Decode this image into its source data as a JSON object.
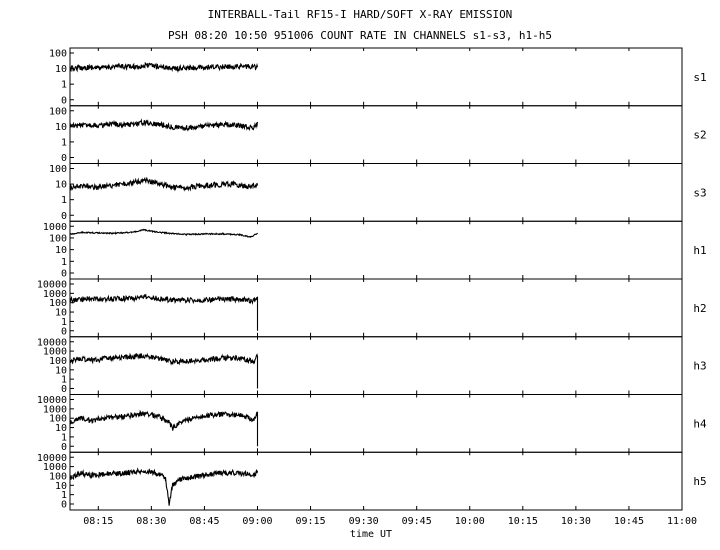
{
  "chart_data": {
    "type": "line",
    "title": "INTERBALL-Tail RF15-I HARD/SOFT X-RAY EMISSION",
    "subtitle": "PSH 08:20 10:50 951006  COUNT RATE IN CHANNELS s1-s3, h1-h5",
    "xlabel": "time UT",
    "x_ticks": [
      "08:15",
      "08:30",
      "08:45",
      "09:00",
      "09:15",
      "09:30",
      "09:45",
      "10:00",
      "10:15",
      "10:30",
      "10:45",
      "11:00"
    ],
    "x_range": [
      "08:07",
      "11:00"
    ],
    "panels": [
      {
        "name": "s1",
        "y_ticks": [
          "100",
          "10",
          "1",
          "0"
        ],
        "points": [
          [
            "08:07",
            10
          ],
          [
            "08:12",
            12
          ],
          [
            "08:16",
            11
          ],
          [
            "08:20",
            14
          ],
          [
            "08:25",
            13
          ],
          [
            "08:29",
            16
          ],
          [
            "08:33",
            13
          ],
          [
            "08:37",
            10
          ],
          [
            "08:41",
            11
          ],
          [
            "08:45",
            11
          ],
          [
            "08:50",
            13
          ],
          [
            "08:55",
            14
          ],
          [
            "09:00",
            13
          ]
        ]
      },
      {
        "name": "s2",
        "y_ticks": [
          "100",
          "10",
          "1",
          "0"
        ],
        "points": [
          [
            "08:07",
            10
          ],
          [
            "08:12",
            13
          ],
          [
            "08:16",
            11
          ],
          [
            "08:20",
            14
          ],
          [
            "08:24",
            13
          ],
          [
            "08:28",
            18
          ],
          [
            "08:32",
            14
          ],
          [
            "08:36",
            9
          ],
          [
            "08:40",
            8
          ],
          [
            "08:45",
            10
          ],
          [
            "08:50",
            13
          ],
          [
            "08:55",
            11
          ],
          [
            "08:59",
            8
          ],
          [
            "09:00",
            16
          ]
        ]
      },
      {
        "name": "s3",
        "y_ticks": [
          "100",
          "10",
          "1",
          "0"
        ],
        "points": [
          [
            "08:07",
            6
          ],
          [
            "08:11",
            8
          ],
          [
            "08:15",
            6
          ],
          [
            "08:20",
            9
          ],
          [
            "08:24",
            11
          ],
          [
            "08:28",
            18
          ],
          [
            "08:32",
            11
          ],
          [
            "08:36",
            6
          ],
          [
            "08:40",
            6
          ],
          [
            "08:44",
            8
          ],
          [
            "08:48",
            9
          ],
          [
            "08:53",
            10
          ],
          [
            "08:57",
            7
          ],
          [
            "09:00",
            9
          ]
        ]
      },
      {
        "name": "h1",
        "y_ticks": [
          "1000",
          "100",
          "10",
          "1",
          "0"
        ],
        "points": [
          [
            "08:07",
            200
          ],
          [
            "08:10",
            300
          ],
          [
            "08:15",
            270
          ],
          [
            "08:20",
            250
          ],
          [
            "08:25",
            320
          ],
          [
            "08:28",
            500
          ],
          [
            "08:31",
            330
          ],
          [
            "08:35",
            250
          ],
          [
            "08:40",
            200
          ],
          [
            "08:45",
            220
          ],
          [
            "08:50",
            220
          ],
          [
            "08:55",
            190
          ],
          [
            "08:58",
            120
          ],
          [
            "09:00",
            240
          ]
        ]
      },
      {
        "name": "h2",
        "y_ticks": [
          "10000",
          "1000",
          "100",
          "10",
          "1",
          "0"
        ],
        "points": [
          [
            "08:07",
            180
          ],
          [
            "08:11",
            250
          ],
          [
            "08:15",
            240
          ],
          [
            "08:20",
            260
          ],
          [
            "08:25",
            280
          ],
          [
            "08:28",
            420
          ],
          [
            "08:32",
            270
          ],
          [
            "08:36",
            200
          ],
          [
            "08:40",
            200
          ],
          [
            "08:45",
            200
          ],
          [
            "08:50",
            240
          ],
          [
            "08:55",
            230
          ],
          [
            "08:59",
            160
          ],
          [
            "09:00",
            360
          ],
          [
            "09:00",
            0
          ]
        ]
      },
      {
        "name": "h3",
        "y_ticks": [
          "10000",
          "1000",
          "100",
          "10",
          "1",
          "0"
        ],
        "points": [
          [
            "08:07",
            80
          ],
          [
            "08:10",
            150
          ],
          [
            "08:14",
            110
          ],
          [
            "08:18",
            180
          ],
          [
            "08:22",
            200
          ],
          [
            "08:28",
            320
          ],
          [
            "08:32",
            170
          ],
          [
            "08:36",
            70
          ],
          [
            "08:40",
            90
          ],
          [
            "08:45",
            110
          ],
          [
            "08:50",
            180
          ],
          [
            "08:55",
            170
          ],
          [
            "08:59",
            80
          ],
          [
            "09:00",
            300
          ],
          [
            "09:00",
            0
          ]
        ]
      },
      {
        "name": "h4",
        "y_ticks": [
          "10000",
          "1000",
          "100",
          "10",
          "1",
          "0"
        ],
        "points": [
          [
            "08:07",
            40
          ],
          [
            "08:10",
            100
          ],
          [
            "08:13",
            50
          ],
          [
            "08:17",
            120
          ],
          [
            "08:22",
            150
          ],
          [
            "08:28",
            330
          ],
          [
            "08:32",
            150
          ],
          [
            "08:35",
            40
          ],
          [
            "08:36",
            8
          ],
          [
            "08:39",
            50
          ],
          [
            "08:44",
            180
          ],
          [
            "08:50",
            260
          ],
          [
            "08:55",
            220
          ],
          [
            "08:59",
            60
          ],
          [
            "09:00",
            300
          ],
          [
            "09:00",
            0
          ]
        ]
      },
      {
        "name": "h5",
        "y_ticks": [
          "10000",
          "1000",
          "100",
          "10",
          "1",
          "0"
        ],
        "points": [
          [
            "08:07",
            60
          ],
          [
            "08:10",
            200
          ],
          [
            "08:13",
            120
          ],
          [
            "08:17",
            160
          ],
          [
            "08:22",
            200
          ],
          [
            "08:28",
            380
          ],
          [
            "08:32",
            170
          ],
          [
            "08:34",
            50
          ],
          [
            "08:35",
            0
          ],
          [
            "08:36",
            10
          ],
          [
            "08:38",
            40
          ],
          [
            "08:43",
            90
          ],
          [
            "08:48",
            200
          ],
          [
            "08:54",
            230
          ],
          [
            "08:59",
            120
          ],
          [
            "09:00",
            300
          ]
        ]
      }
    ]
  }
}
